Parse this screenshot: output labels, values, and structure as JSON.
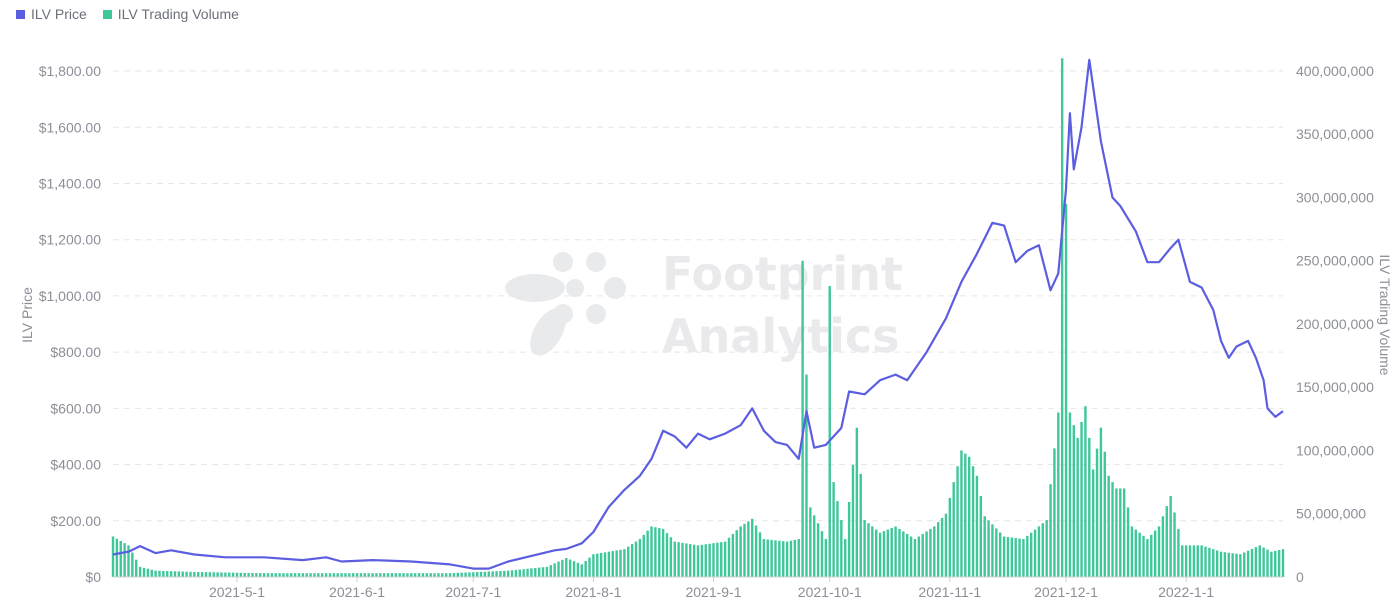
{
  "legend": {
    "price_label": "ILV Price",
    "volume_label": "ILV Trading Volume"
  },
  "watermark": {
    "line1": "Footprint",
    "line2": "Analytics"
  },
  "colors": {
    "price": "#5b5ee0",
    "volume": "#3ec79a",
    "grid": "#e6e6e6",
    "axis": "#cfcfcf"
  },
  "chart_data": {
    "type": "bar+line",
    "y_left": {
      "label": "ILV Price",
      "range": [
        0,
        1850
      ],
      "ticks": [
        0,
        200,
        400,
        600,
        800,
        1000,
        1200,
        1400,
        1600,
        1800
      ],
      "tick_labels": [
        "$0",
        "$200.00",
        "$400.00",
        "$600.00",
        "$800.00",
        "$1,000.00",
        "$1,200.00",
        "$1,400.00",
        "$1,600.00",
        "$1,800.00"
      ]
    },
    "y_right": {
      "label": "ILV Trading Volume",
      "range": [
        0,
        411000000
      ],
      "ticks": [
        0,
        50000000,
        100000000,
        150000000,
        200000000,
        250000000,
        300000000,
        350000000,
        400000000
      ],
      "tick_labels": [
        "0",
        "50,000,000",
        "100,000,000",
        "150,000,000",
        "200,000,000",
        "250,000,000",
        "300,000,000",
        "350,000,000",
        "400,000,000"
      ]
    },
    "x_axis": {
      "start_date": "2021-03-30",
      "end_date": "2022-01-26",
      "ticks": [
        "2021-05-01",
        "2021-06-01",
        "2021-07-01",
        "2021-08-01",
        "2021-09-01",
        "2021-10-01",
        "2021-11-01",
        "2021-12-01",
        "2022-01-01"
      ],
      "tick_labels": [
        "2021-5-1",
        "2021-6-1",
        "2021-7-1",
        "2021-8-1",
        "2021-9-1",
        "2021-10-1",
        "2021-11-1",
        "2021-12-1",
        "2022-1-1"
      ]
    },
    "grid": true,
    "legend_position": "top-left",
    "series": [
      {
        "name": "ILV Price",
        "type": "line",
        "axis": "left",
        "points": [
          [
            "2021-03-30",
            80
          ],
          [
            "2021-04-03",
            90
          ],
          [
            "2021-04-06",
            110
          ],
          [
            "2021-04-10",
            85
          ],
          [
            "2021-04-14",
            95
          ],
          [
            "2021-04-20",
            80
          ],
          [
            "2021-04-28",
            70
          ],
          [
            "2021-05-08",
            70
          ],
          [
            "2021-05-18",
            60
          ],
          [
            "2021-05-24",
            70
          ],
          [
            "2021-05-28",
            55
          ],
          [
            "2021-06-05",
            60
          ],
          [
            "2021-06-15",
            55
          ],
          [
            "2021-06-25",
            45
          ],
          [
            "2021-07-01",
            30
          ],
          [
            "2021-07-05",
            30
          ],
          [
            "2021-07-10",
            55
          ],
          [
            "2021-07-16",
            75
          ],
          [
            "2021-07-22",
            95
          ],
          [
            "2021-07-25",
            100
          ],
          [
            "2021-07-29",
            120
          ],
          [
            "2021-08-01",
            160
          ],
          [
            "2021-08-05",
            250
          ],
          [
            "2021-08-09",
            310
          ],
          [
            "2021-08-13",
            360
          ],
          [
            "2021-08-16",
            420
          ],
          [
            "2021-08-19",
            520
          ],
          [
            "2021-08-22",
            500
          ],
          [
            "2021-08-25",
            460
          ],
          [
            "2021-08-28",
            510
          ],
          [
            "2021-08-31",
            490
          ],
          [
            "2021-09-04",
            510
          ],
          [
            "2021-09-08",
            540
          ],
          [
            "2021-09-11",
            600
          ],
          [
            "2021-09-14",
            520
          ],
          [
            "2021-09-17",
            480
          ],
          [
            "2021-09-20",
            470
          ],
          [
            "2021-09-23",
            420
          ],
          [
            "2021-09-25",
            590
          ],
          [
            "2021-09-27",
            460
          ],
          [
            "2021-09-30",
            470
          ],
          [
            "2021-10-04",
            530
          ],
          [
            "2021-10-06",
            660
          ],
          [
            "2021-10-10",
            650
          ],
          [
            "2021-10-14",
            700
          ],
          [
            "2021-10-18",
            720
          ],
          [
            "2021-10-21",
            700
          ],
          [
            "2021-10-26",
            800
          ],
          [
            "2021-10-31",
            920
          ],
          [
            "2021-11-04",
            1050
          ],
          [
            "2021-11-08",
            1150
          ],
          [
            "2021-11-12",
            1260
          ],
          [
            "2021-11-15",
            1250
          ],
          [
            "2021-11-18",
            1120
          ],
          [
            "2021-11-21",
            1160
          ],
          [
            "2021-11-24",
            1180
          ],
          [
            "2021-11-27",
            1020
          ],
          [
            "2021-11-29",
            1080
          ],
          [
            "2021-12-01",
            1380
          ],
          [
            "2021-12-02",
            1650
          ],
          [
            "2021-12-03",
            1450
          ],
          [
            "2021-12-05",
            1600
          ],
          [
            "2021-12-07",
            1840
          ],
          [
            "2021-12-10",
            1550
          ],
          [
            "2021-12-13",
            1350
          ],
          [
            "2021-12-15",
            1320
          ],
          [
            "2021-12-19",
            1230
          ],
          [
            "2021-12-22",
            1120
          ],
          [
            "2021-12-25",
            1120
          ],
          [
            "2021-12-28",
            1170
          ],
          [
            "2021-12-30",
            1200
          ],
          [
            "2022-01-02",
            1050
          ],
          [
            "2022-01-05",
            1030
          ],
          [
            "2022-01-08",
            950
          ],
          [
            "2022-01-10",
            840
          ],
          [
            "2022-01-12",
            780
          ],
          [
            "2022-01-14",
            820
          ],
          [
            "2022-01-17",
            840
          ],
          [
            "2022-01-19",
            780
          ],
          [
            "2022-01-21",
            700
          ],
          [
            "2022-01-22",
            600
          ],
          [
            "2022-01-24",
            570
          ],
          [
            "2022-01-26",
            590
          ]
        ]
      },
      {
        "name": "ILV Trading Volume",
        "type": "bar",
        "axis": "right",
        "points": [
          [
            "2021-03-30",
            32000000
          ],
          [
            "2021-04-03",
            25000000
          ],
          [
            "2021-04-06",
            8000000
          ],
          [
            "2021-04-10",
            5000000
          ],
          [
            "2021-04-20",
            4000000
          ],
          [
            "2021-05-08",
            3000000
          ],
          [
            "2021-06-05",
            3000000
          ],
          [
            "2021-06-25",
            3000000
          ],
          [
            "2021-07-10",
            5000000
          ],
          [
            "2021-07-20",
            8000000
          ],
          [
            "2021-07-25",
            15000000
          ],
          [
            "2021-07-29",
            10000000
          ],
          [
            "2021-08-01",
            18000000
          ],
          [
            "2021-08-05",
            20000000
          ],
          [
            "2021-08-09",
            22000000
          ],
          [
            "2021-08-13",
            30000000
          ],
          [
            "2021-08-16",
            40000000
          ],
          [
            "2021-08-19",
            38000000
          ],
          [
            "2021-08-22",
            28000000
          ],
          [
            "2021-08-28",
            25000000
          ],
          [
            "2021-09-04",
            28000000
          ],
          [
            "2021-09-08",
            40000000
          ],
          [
            "2021-09-11",
            46000000
          ],
          [
            "2021-09-14",
            30000000
          ],
          [
            "2021-09-20",
            28000000
          ],
          [
            "2021-09-23",
            30000000
          ],
          [
            "2021-09-24",
            250000000
          ],
          [
            "2021-09-25",
            160000000
          ],
          [
            "2021-09-26",
            55000000
          ],
          [
            "2021-09-30",
            30000000
          ],
          [
            "2021-10-01",
            230000000
          ],
          [
            "2021-10-02",
            75000000
          ],
          [
            "2021-10-05",
            30000000
          ],
          [
            "2021-10-08",
            118000000
          ],
          [
            "2021-10-10",
            45000000
          ],
          [
            "2021-10-14",
            35000000
          ],
          [
            "2021-10-18",
            40000000
          ],
          [
            "2021-10-23",
            30000000
          ],
          [
            "2021-10-28",
            40000000
          ],
          [
            "2021-10-31",
            50000000
          ],
          [
            "2021-11-04",
            100000000
          ],
          [
            "2021-11-06",
            95000000
          ],
          [
            "2021-11-08",
            80000000
          ],
          [
            "2021-11-10",
            48000000
          ],
          [
            "2021-11-15",
            32000000
          ],
          [
            "2021-11-20",
            30000000
          ],
          [
            "2021-11-26",
            45000000
          ],
          [
            "2021-11-29",
            130000000
          ],
          [
            "2021-11-30",
            410000000
          ],
          [
            "2021-12-01",
            295000000
          ],
          [
            "2021-12-02",
            130000000
          ],
          [
            "2021-12-04",
            110000000
          ],
          [
            "2021-12-06",
            135000000
          ],
          [
            "2021-12-08",
            85000000
          ],
          [
            "2021-12-10",
            118000000
          ],
          [
            "2021-12-12",
            80000000
          ],
          [
            "2021-12-14",
            70000000
          ],
          [
            "2021-12-16",
            70000000
          ],
          [
            "2021-12-18",
            40000000
          ],
          [
            "2021-12-22",
            30000000
          ],
          [
            "2021-12-25",
            40000000
          ],
          [
            "2021-12-28",
            64000000
          ],
          [
            "2021-12-31",
            25000000
          ],
          [
            "2022-01-05",
            25000000
          ],
          [
            "2022-01-10",
            20000000
          ],
          [
            "2022-01-15",
            18000000
          ],
          [
            "2022-01-20",
            25000000
          ],
          [
            "2022-01-23",
            20000000
          ],
          [
            "2022-01-26",
            22000000
          ]
        ]
      }
    ]
  }
}
